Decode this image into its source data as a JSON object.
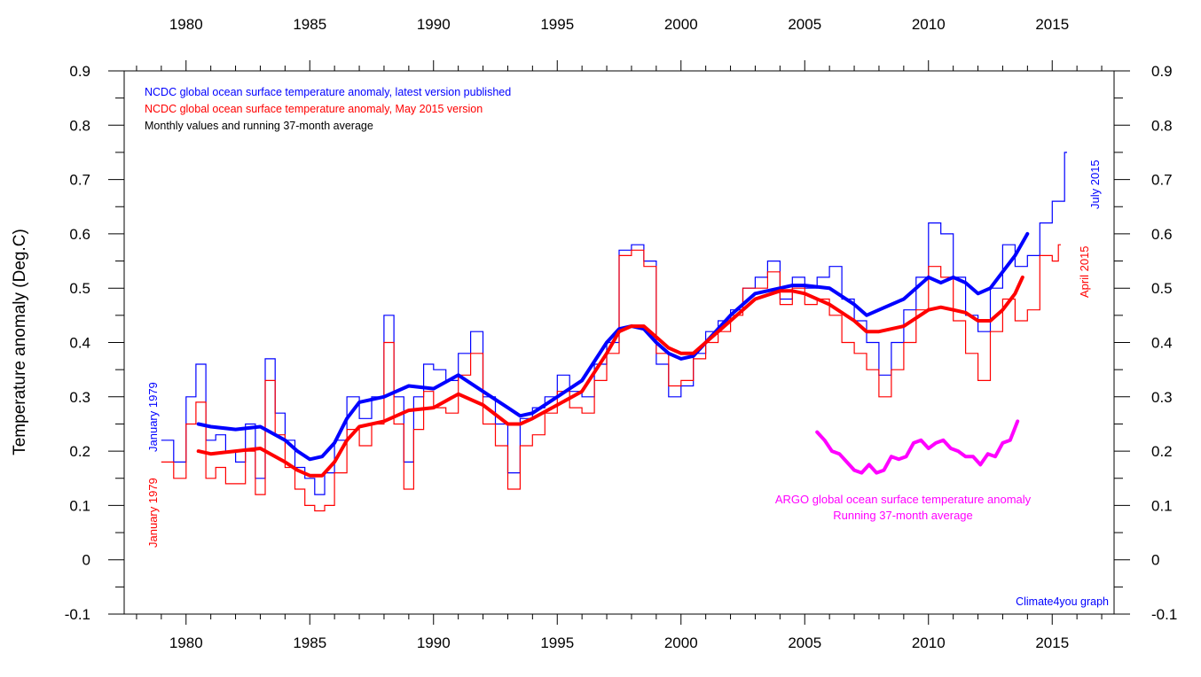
{
  "chart_data": {
    "type": "line",
    "ylabel": "Temperature anomaly (Deg.C)",
    "xlim": [
      1977.5,
      2017.5
    ],
    "ylim": [
      -0.1,
      0.9
    ],
    "x_ticks": [
      1980,
      1985,
      1990,
      1995,
      2000,
      2005,
      2010,
      2015
    ],
    "y_ticks": [
      -0.1,
      0,
      0.1,
      0.2,
      0.3,
      0.4,
      0.5,
      0.6,
      0.7,
      0.8,
      0.9
    ],
    "grid": false,
    "legend_placement": "top-left",
    "legend": [
      {
        "text": "NCDC global ocean surface temperature anomaly, latest version published",
        "color": "#0000ff"
      },
      {
        "text": "NCDC global ocean surface temperature anomaly, May 2015 version",
        "color": "#ff0000"
      },
      {
        "text": "Monthly values and running 37-month average",
        "color": "#000000"
      }
    ],
    "annotations": {
      "jan1979_blue": "January 1979",
      "jan1979_red": "January 1979",
      "july2015": "July 2015",
      "april2015": "April 2015",
      "argo_line1": "ARGO global ocean surface temperature anomaly",
      "argo_line2": "Running 37-month average",
      "credit": "Climate4you graph"
    },
    "series": [
      {
        "key": "blue_monthly",
        "color": "#0000ff",
        "style": "step-thin",
        "x": [
          1979.0,
          1979.5,
          1980.0,
          1980.4,
          1980.8,
          1981.2,
          1981.6,
          1982.0,
          1982.4,
          1982.8,
          1983.2,
          1983.6,
          1984.0,
          1984.4,
          1984.8,
          1985.2,
          1985.6,
          1986.0,
          1986.5,
          1987.0,
          1987.5,
          1988.0,
          1988.4,
          1988.8,
          1989.2,
          1989.6,
          1990.0,
          1990.5,
          1991.0,
          1991.5,
          1992.0,
          1992.5,
          1993.0,
          1993.5,
          1994.0,
          1994.5,
          1995.0,
          1995.5,
          1996.0,
          1996.5,
          1997.0,
          1997.5,
          1998.0,
          1998.5,
          1999.0,
          1999.5,
          2000.0,
          2000.5,
          2001.0,
          2001.5,
          2002.0,
          2002.5,
          2003.0,
          2003.5,
          2004.0,
          2004.5,
          2005.0,
          2005.5,
          2006.0,
          2006.5,
          2007.0,
          2007.5,
          2008.0,
          2008.5,
          2009.0,
          2009.5,
          2010.0,
          2010.5,
          2011.0,
          2011.5,
          2012.0,
          2012.5,
          2013.0,
          2013.5,
          2014.0,
          2014.5,
          2015.0,
          2015.5
        ],
        "y": [
          0.22,
          0.18,
          0.3,
          0.36,
          0.22,
          0.23,
          0.2,
          0.18,
          0.25,
          0.15,
          0.37,
          0.27,
          0.22,
          0.17,
          0.15,
          0.12,
          0.16,
          0.22,
          0.3,
          0.26,
          0.3,
          0.45,
          0.3,
          0.18,
          0.3,
          0.36,
          0.35,
          0.33,
          0.38,
          0.42,
          0.3,
          0.25,
          0.16,
          0.26,
          0.28,
          0.3,
          0.34,
          0.31,
          0.3,
          0.36,
          0.4,
          0.57,
          0.58,
          0.55,
          0.36,
          0.3,
          0.32,
          0.38,
          0.42,
          0.44,
          0.46,
          0.5,
          0.52,
          0.55,
          0.48,
          0.52,
          0.5,
          0.52,
          0.54,
          0.48,
          0.44,
          0.4,
          0.34,
          0.4,
          0.46,
          0.52,
          0.62,
          0.6,
          0.52,
          0.45,
          0.42,
          0.5,
          0.58,
          0.54,
          0.56,
          0.62,
          0.66,
          0.75
        ]
      },
      {
        "key": "red_monthly",
        "color": "#ff0000",
        "style": "step-thin",
        "x": [
          1979.0,
          1979.5,
          1980.0,
          1980.4,
          1980.8,
          1981.2,
          1981.6,
          1982.0,
          1982.4,
          1982.8,
          1983.2,
          1983.6,
          1984.0,
          1984.4,
          1984.8,
          1985.2,
          1985.6,
          1986.0,
          1986.5,
          1987.0,
          1987.5,
          1988.0,
          1988.4,
          1988.8,
          1989.2,
          1989.6,
          1990.0,
          1990.5,
          1991.0,
          1991.5,
          1992.0,
          1992.5,
          1993.0,
          1993.5,
          1994.0,
          1994.5,
          1995.0,
          1995.5,
          1996.0,
          1996.5,
          1997.0,
          1997.5,
          1998.0,
          1998.5,
          1999.0,
          1999.5,
          2000.0,
          2000.5,
          2001.0,
          2001.5,
          2002.0,
          2002.5,
          2003.0,
          2003.5,
          2004.0,
          2004.5,
          2005.0,
          2005.5,
          2006.0,
          2006.5,
          2007.0,
          2007.5,
          2008.0,
          2008.5,
          2009.0,
          2009.5,
          2010.0,
          2010.5,
          2011.0,
          2011.5,
          2012.0,
          2012.5,
          2013.0,
          2013.5,
          2014.0,
          2014.5,
          2015.0,
          2015.25
        ],
        "y": [
          0.18,
          0.15,
          0.25,
          0.29,
          0.15,
          0.17,
          0.14,
          0.14,
          0.2,
          0.12,
          0.33,
          0.23,
          0.17,
          0.13,
          0.1,
          0.09,
          0.1,
          0.16,
          0.24,
          0.21,
          0.25,
          0.4,
          0.25,
          0.13,
          0.24,
          0.31,
          0.28,
          0.27,
          0.34,
          0.38,
          0.25,
          0.21,
          0.13,
          0.21,
          0.23,
          0.27,
          0.31,
          0.28,
          0.27,
          0.33,
          0.38,
          0.56,
          0.57,
          0.54,
          0.38,
          0.32,
          0.33,
          0.37,
          0.4,
          0.42,
          0.45,
          0.5,
          0.5,
          0.53,
          0.47,
          0.5,
          0.47,
          0.48,
          0.45,
          0.4,
          0.38,
          0.35,
          0.3,
          0.35,
          0.4,
          0.46,
          0.54,
          0.52,
          0.44,
          0.38,
          0.33,
          0.42,
          0.48,
          0.44,
          0.46,
          0.56,
          0.55,
          0.58
        ]
      },
      {
        "key": "blue_running_avg",
        "color": "#0000ff",
        "style": "thick",
        "x": [
          1980.5,
          1981.0,
          1982.0,
          1983.0,
          1984.0,
          1984.5,
          1985.0,
          1985.5,
          1986.0,
          1986.5,
          1987.0,
          1988.0,
          1989.0,
          1990.0,
          1991.0,
          1992.0,
          1993.0,
          1993.5,
          1994.0,
          1995.0,
          1996.0,
          1997.0,
          1997.5,
          1998.0,
          1998.5,
          1999.0,
          1999.5,
          2000.0,
          2000.5,
          2001.0,
          2002.0,
          2003.0,
          2004.0,
          2004.5,
          2005.0,
          2006.0,
          2007.0,
          2007.5,
          2008.0,
          2009.0,
          2010.0,
          2010.5,
          2011.0,
          2011.5,
          2012.0,
          2012.5,
          2013.0,
          2013.5,
          2014.0
        ],
        "y": [
          0.25,
          0.245,
          0.24,
          0.245,
          0.22,
          0.2,
          0.185,
          0.19,
          0.215,
          0.26,
          0.29,
          0.3,
          0.32,
          0.315,
          0.34,
          0.31,
          0.28,
          0.265,
          0.27,
          0.3,
          0.33,
          0.4,
          0.425,
          0.43,
          0.425,
          0.4,
          0.38,
          0.37,
          0.375,
          0.4,
          0.45,
          0.49,
          0.5,
          0.505,
          0.505,
          0.5,
          0.47,
          0.45,
          0.46,
          0.48,
          0.52,
          0.51,
          0.52,
          0.51,
          0.49,
          0.5,
          0.53,
          0.56,
          0.6
        ]
      },
      {
        "key": "red_running_avg",
        "color": "#ff0000",
        "style": "thick",
        "x": [
          1980.5,
          1981.0,
          1982.0,
          1983.0,
          1984.0,
          1984.5,
          1985.0,
          1985.5,
          1986.0,
          1986.5,
          1987.0,
          1988.0,
          1989.0,
          1990.0,
          1991.0,
          1992.0,
          1993.0,
          1993.5,
          1994.0,
          1995.0,
          1996.0,
          1997.0,
          1997.5,
          1998.0,
          1998.5,
          1999.0,
          1999.5,
          2000.0,
          2000.5,
          2001.0,
          2002.0,
          2003.0,
          2004.0,
          2004.5,
          2005.0,
          2006.0,
          2007.0,
          2007.5,
          2008.0,
          2009.0,
          2010.0,
          2010.5,
          2011.0,
          2011.5,
          2012.0,
          2012.5,
          2013.0,
          2013.5,
          2013.8
        ],
        "y": [
          0.2,
          0.195,
          0.2,
          0.205,
          0.18,
          0.165,
          0.155,
          0.155,
          0.18,
          0.22,
          0.245,
          0.255,
          0.275,
          0.28,
          0.305,
          0.285,
          0.25,
          0.25,
          0.26,
          0.285,
          0.31,
          0.38,
          0.42,
          0.43,
          0.43,
          0.41,
          0.39,
          0.38,
          0.38,
          0.4,
          0.44,
          0.48,
          0.495,
          0.495,
          0.49,
          0.47,
          0.44,
          0.42,
          0.42,
          0.43,
          0.46,
          0.465,
          0.46,
          0.455,
          0.44,
          0.44,
          0.46,
          0.49,
          0.52
        ]
      },
      {
        "key": "argo_running_avg",
        "color": "#ff00ff",
        "style": "thick",
        "x": [
          2005.5,
          2005.8,
          2006.1,
          2006.4,
          2006.7,
          2007.0,
          2007.3,
          2007.6,
          2007.9,
          2008.2,
          2008.5,
          2008.8,
          2009.1,
          2009.4,
          2009.7,
          2010.0,
          2010.3,
          2010.6,
          2010.9,
          2011.2,
          2011.5,
          2011.8,
          2012.1,
          2012.4,
          2012.7,
          2013.0,
          2013.3,
          2013.6
        ],
        "y": [
          0.235,
          0.22,
          0.2,
          0.195,
          0.18,
          0.165,
          0.16,
          0.175,
          0.16,
          0.165,
          0.19,
          0.185,
          0.19,
          0.215,
          0.22,
          0.205,
          0.215,
          0.22,
          0.205,
          0.2,
          0.19,
          0.19,
          0.175,
          0.195,
          0.19,
          0.215,
          0.22,
          0.255
        ]
      }
    ]
  }
}
